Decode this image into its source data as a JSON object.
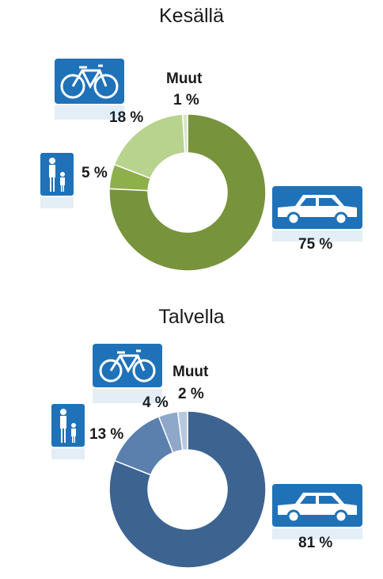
{
  "chart_data": [
    {
      "type": "pie",
      "title": "Kesällä",
      "categories": [
        "Auto",
        "Jalankulku",
        "Pyöräily",
        "Muut"
      ],
      "values": [
        75,
        5,
        18,
        1
      ],
      "labels": [
        "75 %",
        "5 %",
        "18 %",
        "1 %"
      ],
      "other_label": "Muut",
      "colors": [
        "#77933c",
        "#8db04a",
        "#b7d38e",
        "#d7e6c4"
      ],
      "icons": [
        "car-sign-icon",
        "pedestrian-sign-icon",
        "bicycle-sign-icon"
      ]
    },
    {
      "type": "pie",
      "title": "Talvella",
      "categories": [
        "Auto",
        "Jalankulku",
        "Pyöräily",
        "Muut"
      ],
      "values": [
        81,
        13,
        4,
        2
      ],
      "labels": [
        "81 %",
        "13 %",
        "4 %",
        "2 %"
      ],
      "other_label": "Muut",
      "colors": [
        "#3d6391",
        "#5b80ae",
        "#8fa7c8",
        "#b7c8de"
      ],
      "icons": [
        "car-sign-icon",
        "pedestrian-sign-icon",
        "bicycle-sign-icon"
      ]
    }
  ]
}
